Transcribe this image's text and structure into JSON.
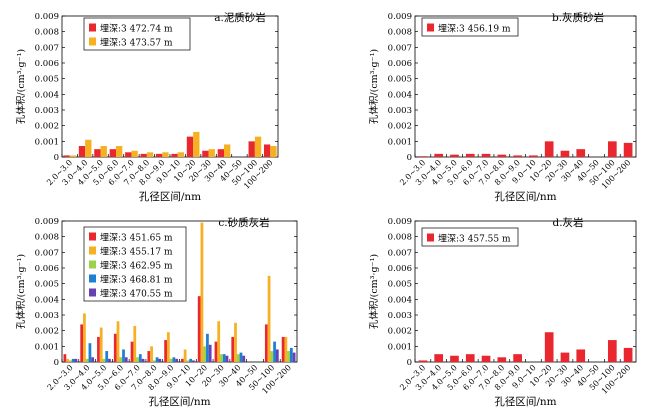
{
  "figure": {
    "background": "#ffffff",
    "axis_color": "#000000"
  },
  "chart_data": [
    {
      "type": "bar",
      "title": "a.泥质砂岩",
      "categories": [
        "2.0~3.0",
        "3.0~4.0",
        "4.0~5.0",
        "5.0~6.0",
        "6.0~7.0",
        "7.0~8.0",
        "8.0~9.0",
        "9.0~10",
        "10~20",
        "20~30",
        "30~40",
        "40~50",
        "50~100",
        "100~200"
      ],
      "xlabel": "孔径区间/nm",
      "ylabel": "孔体积/(cm³·g⁻¹)",
      "ylim": [
        0,
        0.009
      ],
      "yticks": [
        0,
        0.001,
        0.002,
        0.003,
        0.004,
        0.005,
        0.006,
        0.007,
        0.008,
        0.009
      ],
      "ytick_labels": [
        "0",
        "0.001",
        "0.002",
        "0.003",
        "0.004",
        "0.005",
        "0.006",
        "0.007",
        "0.008",
        "0.009"
      ],
      "legend_position": "top-left",
      "series": [
        {
          "name": "埋深:3 472.74 m",
          "color": "#e8282e",
          "values": [
            0.0001,
            0.0007,
            0.0005,
            0.0005,
            0.0003,
            0.0002,
            0.0002,
            0.0002,
            0.0013,
            0.0004,
            0.0005,
            0.0,
            0.001,
            0.0008
          ]
        },
        {
          "name": "埋深:3 473.57 m",
          "color": "#f6b022",
          "values": [
            0.0001,
            0.0011,
            0.0007,
            0.0007,
            0.0004,
            0.0003,
            0.0003,
            0.0003,
            0.0016,
            0.0005,
            0.0008,
            0.0,
            0.0013,
            0.0007
          ]
        }
      ]
    },
    {
      "type": "bar",
      "title": "b.灰质砂岩",
      "categories": [
        "2.0~3.0",
        "3.0~4.0",
        "4.0~5.0",
        "5.0~6.0",
        "6.0~7.0",
        "7.0~8.0",
        "8.0~9.0",
        "9.0~10",
        "10~20",
        "20~30",
        "30~40",
        "40~50",
        "50~100",
        "100~200"
      ],
      "xlabel": "孔径区间/nm",
      "ylabel": "孔体积/(cm³·g⁻¹)",
      "ylim": [
        0,
        0.009
      ],
      "yticks": [
        0,
        0.001,
        0.002,
        0.003,
        0.004,
        0.005,
        0.006,
        0.007,
        0.008,
        0.009
      ],
      "ytick_labels": [
        "0",
        "0.001",
        "0.002",
        "0.003",
        "0.004",
        "0.005",
        "0.006",
        "0.007",
        "0.008",
        "0.009"
      ],
      "legend_position": "top-left",
      "series": [
        {
          "name": "埋深:3 456.19 m",
          "color": "#e8282e",
          "values": [
            5e-05,
            0.0002,
            0.00015,
            0.0002,
            0.0002,
            0.00015,
            0.0001,
            0.0001,
            0.001,
            0.0004,
            0.0005,
            0.0,
            0.001,
            0.0009
          ]
        }
      ]
    },
    {
      "type": "bar",
      "title": "c.砂质灰岩",
      "categories": [
        "2.0~3.0",
        "3.0~4.0",
        "4.0~5.0",
        "5.0~6.0",
        "6.0~7.0",
        "7.0~8.0",
        "8.0~9.0",
        "9.0~10",
        "10~20",
        "20~30",
        "30~40",
        "40~50",
        "50~100",
        "100~200"
      ],
      "xlabel": "孔径区间/nm",
      "ylabel": "孔体积/(cm³·g⁻¹)",
      "ylim": [
        0,
        0.009
      ],
      "yticks": [
        0,
        0.001,
        0.002,
        0.003,
        0.004,
        0.005,
        0.006,
        0.007,
        0.008,
        0.009
      ],
      "ytick_labels": [
        "0",
        "0.001",
        "0.002",
        "0.003",
        "0.004",
        "0.005",
        "0.006",
        "0.007",
        "0.008",
        "0.009"
      ],
      "legend_position": "top-left",
      "series": [
        {
          "name": "埋深:3 451.65 m",
          "color": "#e8282e",
          "values": [
            0.0005,
            0.0024,
            0.0016,
            0.0018,
            0.0013,
            0.0007,
            0.0014,
            0.0002,
            0.0042,
            0.0013,
            0.0016,
            0.0,
            0.0024,
            0.0016
          ]
        },
        {
          "name": "埋深:3 455.17 m",
          "color": "#f6b022",
          "values": [
            0.0002,
            0.0031,
            0.0022,
            0.0026,
            0.0023,
            0.001,
            0.0019,
            0.0008,
            0.0089,
            0.0026,
            0.0025,
            0.0,
            0.0055,
            0.0016
          ]
        },
        {
          "name": "埋深:3 462.95 m",
          "color": "#9bd14b",
          "values": [
            0.0001,
            0.0002,
            0.0002,
            0.0003,
            0.0003,
            0.0001,
            0.0002,
            0.0001,
            0.001,
            0.0005,
            0.0005,
            0.0,
            0.0007,
            0.0007
          ]
        },
        {
          "name": "埋深:3 468.81 m",
          "color": "#1f7fd1",
          "values": [
            0.0002,
            0.0012,
            0.0007,
            0.0008,
            0.0005,
            0.0003,
            0.0003,
            0.0002,
            0.0018,
            0.0005,
            0.0006,
            0.0,
            0.0013,
            0.0009
          ]
        },
        {
          "name": "埋深:3 470.55 m",
          "color": "#6a3fb1",
          "values": [
            0.0002,
            0.0003,
            0.0002,
            0.0003,
            0.0002,
            0.0002,
            0.0002,
            0.0001,
            0.0011,
            0.0004,
            0.0004,
            0.0,
            0.0008,
            0.0006
          ]
        }
      ]
    },
    {
      "type": "bar",
      "title": "d.灰岩",
      "categories": [
        "2.0~3.0",
        "3.0~4.0",
        "4.0~5.0",
        "5.0~6.0",
        "6.0~7.0",
        "7.0~8.0",
        "8.0~9.0",
        "9.0~10",
        "10~20",
        "20~30",
        "30~40",
        "40~50",
        "50~100",
        "100~200"
      ],
      "xlabel": "孔径区间/nm",
      "ylabel": "孔体积/(cm³·g⁻¹)",
      "ylim": [
        0,
        0.009
      ],
      "yticks": [
        0,
        0.001,
        0.002,
        0.003,
        0.004,
        0.005,
        0.006,
        0.007,
        0.008,
        0.009
      ],
      "ytick_labels": [
        "0",
        "0.001",
        "0.002",
        "0.003",
        "0.004",
        "0.005",
        "0.006",
        "0.007",
        "0.008",
        "0.009"
      ],
      "legend_position": "top-left",
      "series": [
        {
          "name": "埋深:3 457.55 m",
          "color": "#e8282e",
          "values": [
            0.0001,
            0.0005,
            0.0004,
            0.0005,
            0.0004,
            0.0003,
            0.0005,
            0.0,
            0.0019,
            0.0006,
            0.0008,
            0.0,
            0.0014,
            0.0009
          ]
        }
      ]
    }
  ]
}
